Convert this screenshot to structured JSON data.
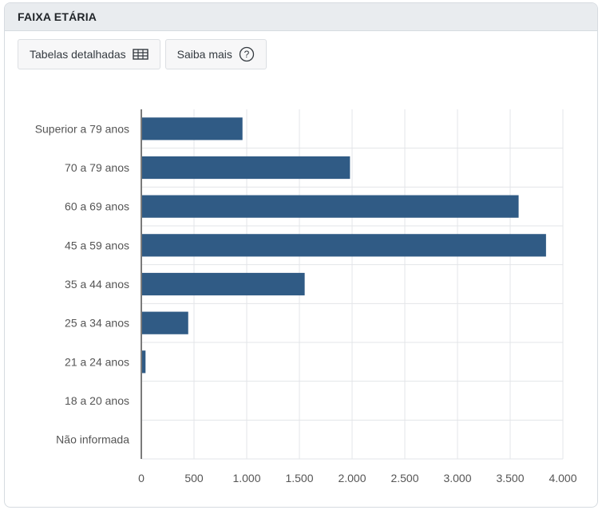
{
  "panel": {
    "title": "FAIXA ETÁRIA"
  },
  "toolbar": {
    "tables_label": "Tabelas detalhadas",
    "more_label": "Saiba mais",
    "tables_icon": "table-icon",
    "more_icon": "help-circle-icon"
  },
  "colors": {
    "bar": "#305b85",
    "grid": "#e3e5e8",
    "axis": "#7a7a7a",
    "text": "#555555"
  },
  "chart_data": {
    "type": "bar",
    "orientation": "horizontal",
    "title": "",
    "xlabel": "",
    "ylabel": "",
    "categories": [
      "Superior a 79 anos",
      "70 a 79 anos",
      "60 a 69 anos",
      "45 a 59 anos",
      "35 a 44 anos",
      "25 a 34 anos",
      "21 a 24 anos",
      "18 a 20 anos",
      "Não informada"
    ],
    "values": [
      960,
      1980,
      3580,
      3840,
      1550,
      445,
      40,
      0,
      0
    ],
    "xlim": [
      0,
      4000
    ],
    "xticks": [
      0,
      500,
      1000,
      1500,
      2000,
      2500,
      3000,
      3500,
      4000
    ],
    "xtick_labels": [
      "0",
      "500",
      "1.000",
      "1.500",
      "2.000",
      "2.500",
      "3.000",
      "3.500",
      "4.000"
    ],
    "grid": true,
    "legend": "none"
  }
}
